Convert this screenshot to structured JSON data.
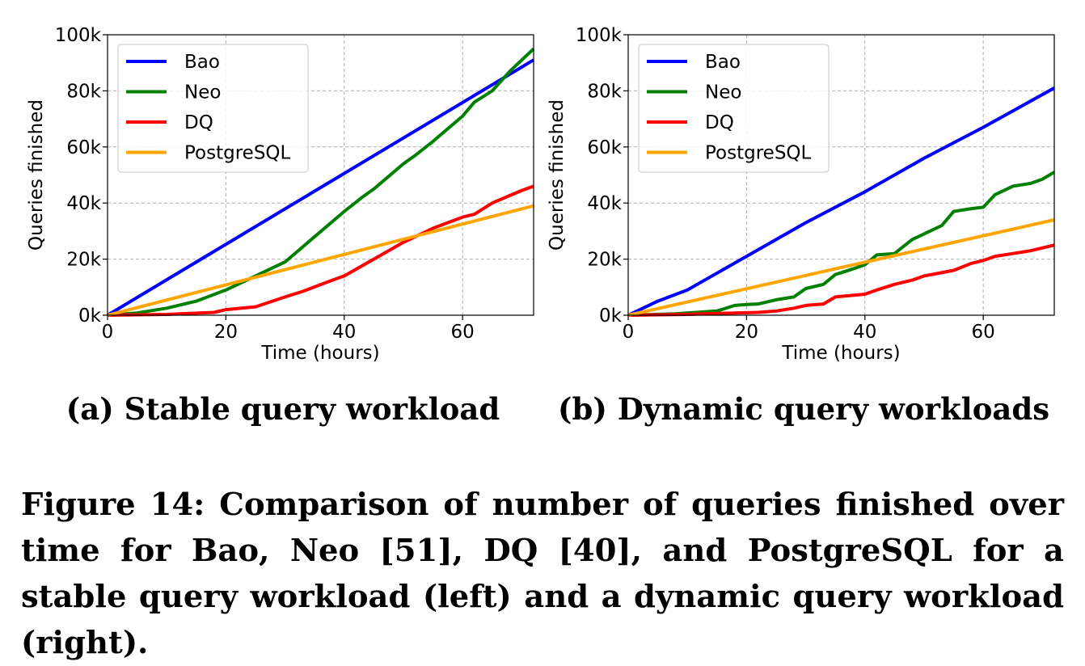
{
  "colors": {
    "Bao": "#0000ff",
    "Neo": "#008000",
    "DQ": "#ff0000",
    "PostgreSQL": "#ffa500"
  },
  "chart_data": [
    {
      "type": "line",
      "title": "",
      "xlabel": "Time (hours)",
      "ylabel": "Queries finished",
      "xlim": [
        0,
        72
      ],
      "ylim": [
        0,
        100000
      ],
      "xticks": [
        0,
        20,
        40,
        60
      ],
      "yticks": [
        0,
        20000,
        40000,
        60000,
        80000,
        100000
      ],
      "ytick_labels": [
        "0k",
        "20k",
        "40k",
        "60k",
        "80k",
        "100k"
      ],
      "grid": true,
      "legend": "top-left",
      "series": [
        {
          "name": "Bao",
          "x": [
            0,
            72
          ],
          "y": [
            0,
            91000
          ]
        },
        {
          "name": "Neo",
          "x": [
            0,
            5,
            10,
            15,
            20,
            25,
            30,
            35,
            40,
            43,
            45,
            50,
            52,
            55,
            60,
            62,
            65,
            68,
            70,
            72
          ],
          "y": [
            0,
            800,
            2500,
            5000,
            9000,
            14000,
            19000,
            28000,
            37000,
            42000,
            45000,
            54000,
            57000,
            62000,
            71000,
            76000,
            80000,
            87000,
            91000,
            95000
          ]
        },
        {
          "name": "DQ",
          "x": [
            0,
            10,
            18,
            20,
            25,
            30,
            33,
            38,
            40,
            45,
            50,
            55,
            60,
            62,
            65,
            70,
            72
          ],
          "y": [
            0,
            300,
            1000,
            2000,
            3000,
            6500,
            8500,
            12500,
            14000,
            20000,
            26000,
            31000,
            35000,
            36000,
            40000,
            44500,
            46000
          ]
        },
        {
          "name": "PostgreSQL",
          "x": [
            0,
            72
          ],
          "y": [
            0,
            39000
          ]
        }
      ]
    },
    {
      "type": "line",
      "title": "",
      "xlabel": "Time (hours)",
      "ylabel": "Queries finished",
      "xlim": [
        0,
        72
      ],
      "ylim": [
        0,
        100000
      ],
      "xticks": [
        0,
        20,
        40,
        60
      ],
      "yticks": [
        0,
        20000,
        40000,
        60000,
        80000,
        100000
      ],
      "ytick_labels": [
        "0k",
        "20k",
        "40k",
        "60k",
        "80k",
        "100k"
      ],
      "grid": true,
      "legend": "top-left",
      "series": [
        {
          "name": "Bao",
          "x": [
            0,
            5,
            10,
            20,
            30,
            40,
            50,
            60,
            72
          ],
          "y": [
            0,
            5000,
            9000,
            21000,
            33000,
            44000,
            56000,
            67000,
            81000
          ]
        },
        {
          "name": "Neo",
          "x": [
            0,
            8,
            15,
            18,
            20,
            22,
            25,
            28,
            30,
            33,
            35,
            38,
            40,
            42,
            45,
            48,
            50,
            53,
            55,
            58,
            60,
            62,
            65,
            68,
            70,
            72
          ],
          "y": [
            0,
            500,
            1500,
            3500,
            3800,
            4000,
            5500,
            6500,
            9500,
            11000,
            14500,
            16500,
            18000,
            21500,
            22000,
            27000,
            29000,
            32000,
            37000,
            38000,
            38500,
            43000,
            46000,
            47000,
            48500,
            51000
          ]
        },
        {
          "name": "DQ",
          "x": [
            0,
            10,
            18,
            22,
            25,
            28,
            30,
            33,
            35,
            40,
            42,
            45,
            48,
            50,
            55,
            58,
            60,
            62,
            65,
            68,
            70,
            72
          ],
          "y": [
            0,
            300,
            800,
            1000,
            1500,
            2500,
            3500,
            4000,
            6500,
            7500,
            9000,
            11000,
            12500,
            14000,
            16000,
            18500,
            19500,
            21000,
            22000,
            23000,
            24000,
            25000
          ]
        },
        {
          "name": "PostgreSQL",
          "x": [
            0,
            72
          ],
          "y": [
            0,
            34000
          ]
        }
      ]
    }
  ],
  "subcaptions": {
    "a": "(a) Stable query workload",
    "b": "(b) Dynamic query workloads"
  },
  "caption": "Figure 14: Comparison of number of queries finished over time for Bao, Neo [51], DQ [40], and PostgreSQL for a stable query workload (left) and a dynamic query workload (right)."
}
